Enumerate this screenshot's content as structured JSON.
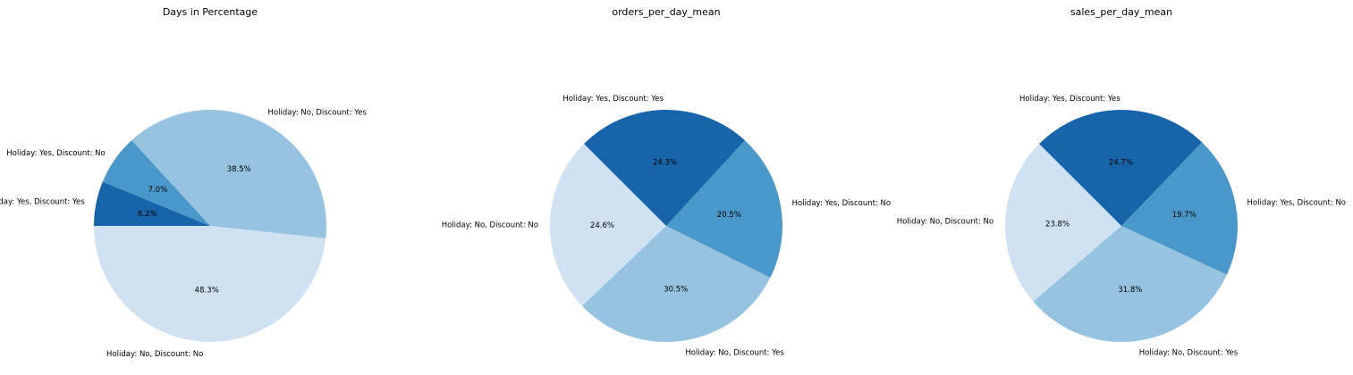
{
  "chart_data": [
    {
      "type": "pie",
      "title": "Days in Percentage",
      "start_angle_deg": 180,
      "direction": "counterclockwise",
      "slices": [
        {
          "label": "Holiday: No, Discount: No",
          "value": 48.3,
          "pct_label": "48.3%",
          "color": "#d0e2f2"
        },
        {
          "label": "Holiday: No, Discount: Yes",
          "value": 38.5,
          "pct_label": "38.5%",
          "color": "#95c3e0"
        },
        {
          "label": "Holiday: Yes, Discount: No",
          "value": 7.0,
          "pct_label": "7.0%",
          "color": "#4a97c9"
        },
        {
          "label": "Holiday: Yes, Discount: Yes",
          "value": 6.2,
          "pct_label": "6.2%",
          "color": "#1864aa"
        }
      ]
    },
    {
      "type": "pie",
      "title": "orders_per_day_mean",
      "start_angle_deg": 135,
      "direction": "counterclockwise",
      "slices": [
        {
          "label": "Holiday: No, Discount: No",
          "value": 24.6,
          "pct_label": "24.6%",
          "color": "#d0e2f2"
        },
        {
          "label": "Holiday: No, Discount: Yes",
          "value": 30.5,
          "pct_label": "30.5%",
          "color": "#95c3e0"
        },
        {
          "label": "Holiday: Yes, Discount: No",
          "value": 20.5,
          "pct_label": "20.5%",
          "color": "#4a97c9"
        },
        {
          "label": "Holiday: Yes, Discount: Yes",
          "value": 24.3,
          "pct_label": "24.3%",
          "color": "#1864aa"
        }
      ]
    },
    {
      "type": "pie",
      "title": "sales_per_day_mean",
      "start_angle_deg": 135,
      "direction": "counterclockwise",
      "slices": [
        {
          "label": "Holiday: No, Discount: No",
          "value": 23.8,
          "pct_label": "23.8%",
          "color": "#d0e2f2"
        },
        {
          "label": "Holiday: No, Discount: Yes",
          "value": 31.8,
          "pct_label": "31.8%",
          "color": "#95c3e0"
        },
        {
          "label": "Holiday: Yes, Discount: No",
          "value": 19.7,
          "pct_label": "19.7%",
          "color": "#4a97c9"
        },
        {
          "label": "Holiday: Yes, Discount: Yes",
          "value": 24.7,
          "pct_label": "24.7%",
          "color": "#1864aa"
        }
      ]
    }
  ]
}
